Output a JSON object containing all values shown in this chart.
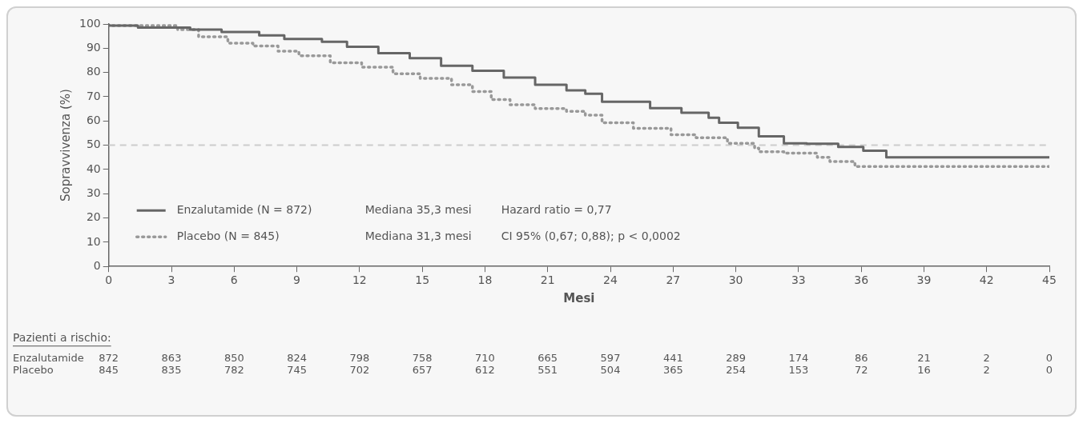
{
  "chart_data": {
    "type": "step",
    "xlabel": "Mesi",
    "ylabel": "Sopravvivenza (%)",
    "xlim": [
      0,
      45
    ],
    "xticks": [
      0,
      3,
      6,
      9,
      12,
      15,
      18,
      21,
      24,
      27,
      30,
      33,
      36,
      39,
      42,
      45
    ],
    "ylim": [
      0,
      100
    ],
    "yticks": [
      0,
      10,
      20,
      30,
      40,
      50,
      60,
      70,
      80,
      90,
      100
    ],
    "legend": "bottom left",
    "series": [
      {
        "name": "Enzalutamide (N = 872)",
        "color": "#666666",
        "line_style": "solid",
        "x": [
          0,
          1.4,
          3.9,
          5.4,
          7.2,
          8.4,
          10.2,
          11.4,
          12.9,
          14.4,
          15.9,
          17.4,
          18.9,
          20.4,
          21.9,
          22.8,
          23.6,
          25.9,
          27.4,
          28.7,
          29.2,
          30.1,
          31.1,
          32.3,
          33.4,
          34.9,
          36.1,
          37.2,
          37.8,
          45
        ],
        "values": [
          100,
          99.3,
          98.5,
          97.7,
          96.7,
          95.3,
          93.8,
          92.7,
          90.6,
          88,
          85.9,
          82.8,
          80.7,
          77.9,
          74.9,
          72.6,
          71.2,
          67.9,
          65.3,
          63.4,
          61.3,
          59.3,
          57.2,
          53.7,
          50.8,
          50.6,
          49.3,
          47.7,
          45,
          45
        ]
      },
      {
        "name": "Placebo (N = 845)",
        "color": "#999999",
        "line_style": "dotted",
        "x": [
          0,
          3.3,
          4.3,
          5.7,
          6.9,
          8.1,
          9.1,
          10.6,
          12.1,
          13.6,
          14.9,
          16.4,
          17.4,
          18.3,
          19.2,
          20.4,
          21.9,
          22.8,
          23.6,
          25.1,
          26.9,
          28.1,
          29.6,
          30.9,
          31.1,
          32.3,
          33.9,
          34.5,
          35.7,
          36.3,
          45
        ],
        "values": [
          100,
          99.3,
          97.7,
          94.7,
          92.1,
          90.9,
          88.8,
          86.9,
          84,
          82.2,
          79.5,
          77.6,
          74.9,
          72.1,
          68.8,
          66.7,
          65.1,
          64,
          62.4,
          59.3,
          57,
          54.3,
          53.1,
          50.8,
          48.8,
          47.3,
          46.7,
          45,
          43.3,
          41.2,
          41.2
        ]
      }
    ],
    "ref_lines": [
      {
        "axis": "y",
        "value": 50,
        "color": "#cccccc",
        "line_style": "dashed"
      }
    ],
    "annotations": [
      "Mediana 35,3 mesi",
      "Hazard ratio = 0,77",
      "Mediana 31,3 mesi",
      "CI 95% (0,67; 0,88); p < 0,0002",
      "Pazienti a rischio:",
      "Enzalutamide 872 863 850 824 798 758 710 665 597 441 289 174 86 21 2 0",
      "Placebo 845 835 782 745 702 657 612 551 504 365 254 153 72 16 2 0"
    ]
  }
}
